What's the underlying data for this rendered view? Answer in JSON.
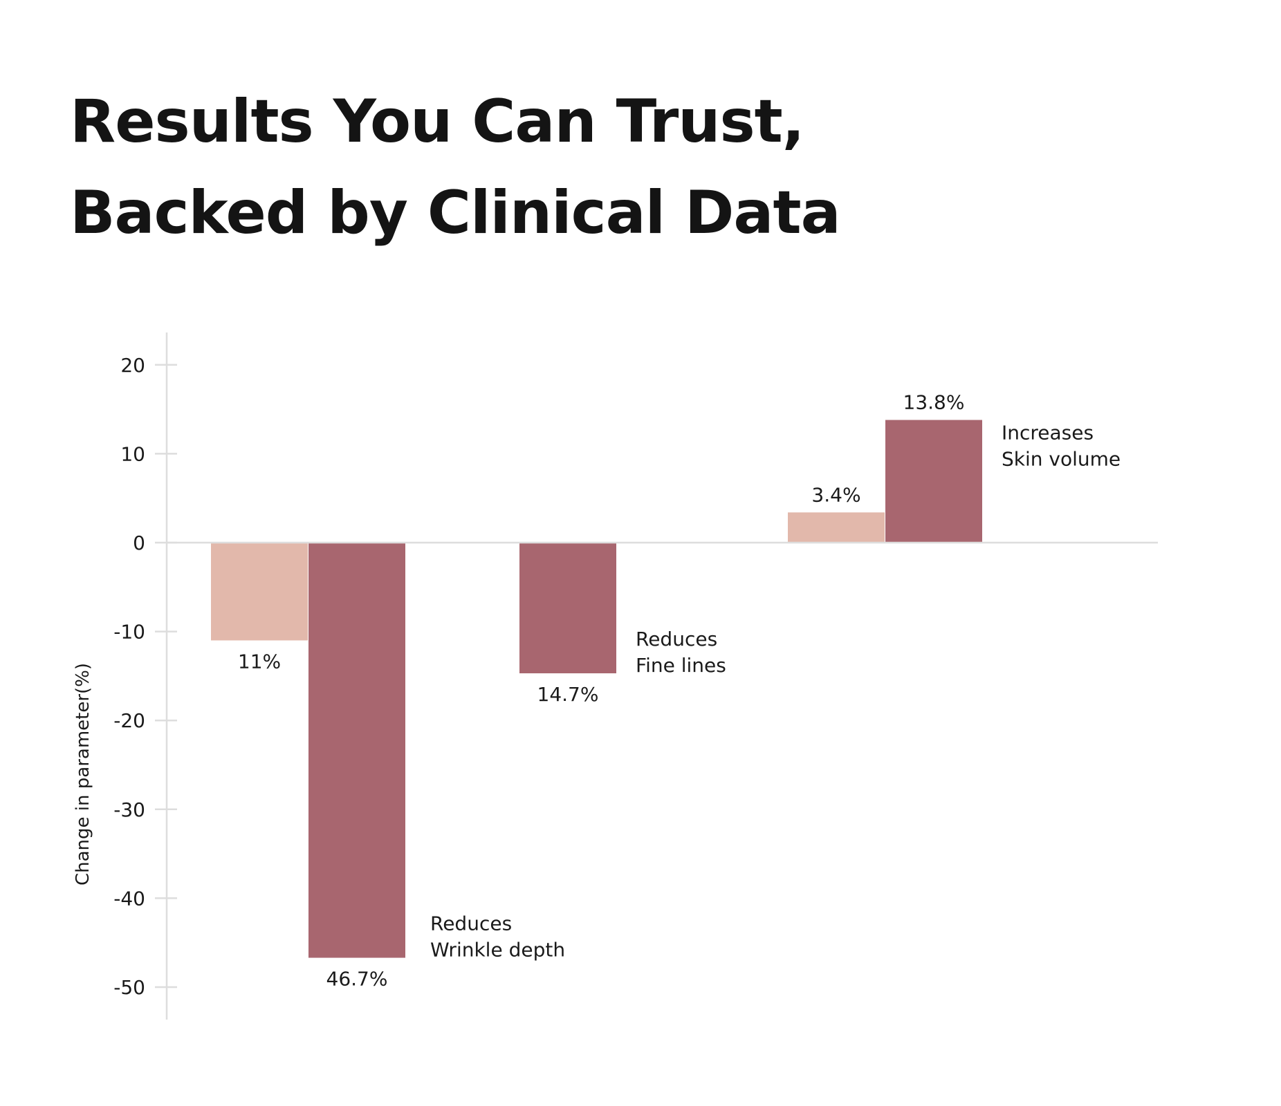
{
  "title_lines": [
    "Results You Can Trust,",
    "Backed by Clinical Data"
  ],
  "chart_data": {
    "type": "bar",
    "title": "Results You Can Trust, Backed by Clinical Data",
    "ylabel": "Change in parameter(%)",
    "xlabel": "",
    "ylim": [
      -55,
      25
    ],
    "yticks": [
      20,
      10,
      0,
      -10,
      -20,
      -30,
      -40,
      -50
    ],
    "colors": {
      "light": "#e2b8ab",
      "dark": "#a8666f",
      "axis": "#dddddd"
    },
    "groups": [
      {
        "label": [
          "Reduces",
          "Wrinkle depth"
        ],
        "bars": [
          {
            "series": "light",
            "value": -11,
            "label": "11%"
          },
          {
            "series": "dark",
            "value": -46.7,
            "label": "46.7%"
          }
        ]
      },
      {
        "label": [
          "Reduces",
          "Fine lines"
        ],
        "bars": [
          {
            "series": "dark",
            "value": -14.7,
            "label": "14.7%"
          }
        ]
      },
      {
        "label": [
          "Increases",
          "Skin volume"
        ],
        "bars": [
          {
            "series": "light",
            "value": 3.4,
            "label": "3.4%"
          },
          {
            "series": "dark",
            "value": 13.8,
            "label": "13.8%"
          }
        ]
      }
    ]
  }
}
